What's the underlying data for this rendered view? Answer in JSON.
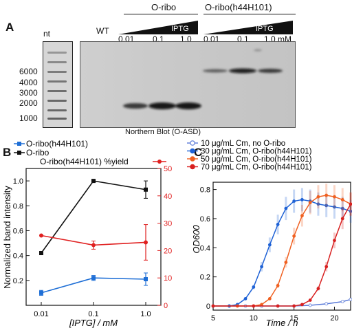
{
  "panelA": {
    "letter": "A",
    "group1_label": "O-ribo",
    "group2_label": "O-ribo(h44H101)",
    "nt_label": "nt",
    "wt_label": "WT",
    "iptg_label": "IPTG",
    "lane_labels": [
      "0.01",
      "0.1",
      "1.0",
      "0.01",
      "0.1",
      "1.0 mM"
    ],
    "marker_labels": [
      "6000",
      "4000",
      "3000",
      "2000",
      "1000"
    ],
    "caption": "Northern Blot (O-ASD)"
  },
  "panelB": {
    "letter": "B",
    "legend": {
      "series1": "O-ribo(h44H101)",
      "series2": "O-ribo",
      "series3": "O-ribo(h44H101) %yield"
    },
    "chart_data": {
      "type": "line",
      "x": [
        0.01,
        0.1,
        1.0
      ],
      "x_scale": "log",
      "xlabel": "[IPTG] / mM",
      "xticks": [
        "0.01",
        "0.1",
        "1.0"
      ],
      "ylabel": "Normalized band intensity",
      "ylim": [
        0,
        1.1
      ],
      "yticks": [
        "0.2",
        "0.4",
        "0.6",
        "0.8",
        "1.0"
      ],
      "y2label": "",
      "y2lim": [
        0,
        50
      ],
      "y2ticks": [
        "0",
        "10",
        "20",
        "30",
        "40",
        "50"
      ],
      "series": [
        {
          "name": "O-ribo(h44H101)",
          "axis": "left",
          "color": "#1f6fd6",
          "values": [
            0.1,
            0.22,
            0.21
          ],
          "errors": [
            0.02,
            0.02,
            0.05
          ]
        },
        {
          "name": "O-ribo",
          "axis": "left",
          "color": "#111111",
          "values": [
            0.42,
            1.0,
            0.93
          ],
          "errors": [
            0.0,
            0.0,
            0.07
          ]
        },
        {
          "name": "O-ribo(h44H101) %yield",
          "axis": "right",
          "color": "#e02020",
          "values": [
            25.5,
            22,
            23
          ],
          "errors": [
            0,
            1.5,
            6.5
          ]
        }
      ]
    }
  },
  "panelC": {
    "letter": "C",
    "legend": [
      "10 μg/mL Cm, no O-ribo",
      "30 μg/mL Cm, O-ribo(h44H101)",
      "50 μg/mL Cm, O-ribo(h44H101)",
      "70 μg/mL Cm, O-ribo(h44H101)"
    ],
    "chart_data": {
      "type": "line",
      "xlabel": "Time / h",
      "ylabel": "OD600",
      "xlim": [
        5,
        22
      ],
      "ylim": [
        0,
        0.85
      ],
      "xticks": [
        "5",
        "10",
        "15",
        "20"
      ],
      "yticks": [
        "0",
        "0.2",
        "0.4",
        "0.6",
        "0.8"
      ],
      "series": [
        {
          "name": "10 μg/mL Cm, no O-ribo",
          "color": "#5a7ad8",
          "open": true,
          "x": [
            5,
            7,
            9,
            11,
            13,
            15,
            17,
            19,
            21,
            22
          ],
          "y": [
            0.0,
            0.0,
            0.0,
            0.0,
            0.0,
            0.0,
            0.005,
            0.015,
            0.03,
            0.045
          ]
        },
        {
          "name": "30 μg/mL Cm, O-ribo(h44H101)",
          "color": "#1f62d6",
          "open": false,
          "x": [
            5,
            7,
            8,
            9,
            10,
            11,
            12,
            13,
            14,
            15,
            16,
            17,
            18,
            19,
            20,
            21,
            22
          ],
          "y": [
            0.0,
            0.0,
            0.01,
            0.05,
            0.13,
            0.27,
            0.42,
            0.56,
            0.67,
            0.72,
            0.73,
            0.72,
            0.7,
            0.69,
            0.68,
            0.67,
            0.65
          ]
        },
        {
          "name": "50 μg/mL Cm, O-ribo(h44H101)",
          "color": "#f06020",
          "open": false,
          "x": [
            5,
            8,
            10,
            11,
            12,
            13,
            14,
            15,
            16,
            17,
            18,
            19,
            20,
            21,
            22
          ],
          "y": [
            0.0,
            0.0,
            0.0,
            0.01,
            0.05,
            0.14,
            0.3,
            0.48,
            0.62,
            0.71,
            0.75,
            0.76,
            0.75,
            0.73,
            0.7
          ]
        },
        {
          "name": "70 μg/mL Cm, O-ribo(h44H101)",
          "color": "#d82020",
          "open": false,
          "x": [
            5,
            10,
            13,
            15,
            16,
            17,
            18,
            19,
            20,
            21,
            22
          ],
          "y": [
            0.0,
            0.0,
            0.0,
            0.0,
            0.01,
            0.04,
            0.12,
            0.27,
            0.45,
            0.6,
            0.7
          ]
        }
      ]
    }
  }
}
